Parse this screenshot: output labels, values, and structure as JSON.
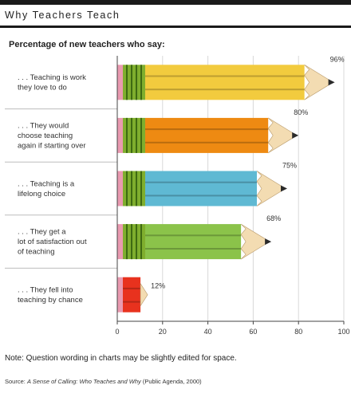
{
  "title": "Why Teachers Teach",
  "subtitle": "Percentage of new teachers who say:",
  "note": "Note: Question wording in charts may be slightly edited for space.",
  "source": {
    "prefix": "Source: ",
    "work": "A Sense of Calling: Who Teaches and Why",
    "suffix": " (Public Agenda, 2000)"
  },
  "chart_data": {
    "type": "bar",
    "orientation": "horizontal",
    "categories": [
      ". . . Teaching is work they love to do",
      ". . . They would choose teaching again if starting over",
      ". . . Teaching is a lifelong choice",
      ". . . They get a lot of satisfaction out of teaching",
      ". . . They fell into teaching by chance"
    ],
    "category_lines": [
      [
        ". . . Teaching is work",
        "they love to do"
      ],
      [
        ". . . They would",
        "choose teaching",
        "again if starting over"
      ],
      [
        ". . . Teaching is a",
        "lifelong choice"
      ],
      [
        ". . . They get a",
        "lot of satisfaction out",
        "of teaching"
      ],
      [
        ". . . They fell into",
        "teaching by chance"
      ]
    ],
    "values": [
      96,
      80,
      75,
      68,
      12
    ],
    "value_labels": [
      "96%",
      "80%",
      "75%",
      "68%",
      "12%"
    ],
    "colors": [
      "#f2cb3e",
      "#ee8a12",
      "#5fb9d3",
      "#8bc34a",
      "#e8321e"
    ],
    "xlim": [
      0,
      100
    ],
    "xticks": [
      0,
      20,
      40,
      60,
      80,
      100
    ],
    "xlabel": "",
    "ylabel": "",
    "grid": "vertical"
  }
}
